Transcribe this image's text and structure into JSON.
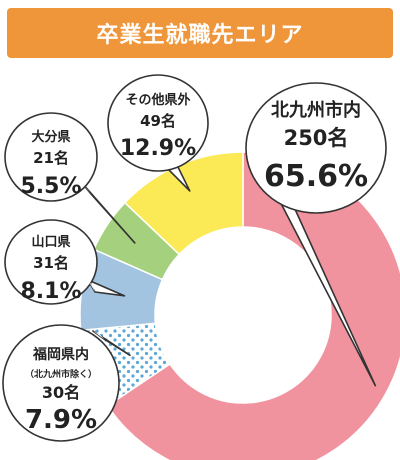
{
  "title": "卒業生就職先エリア",
  "colors": {
    "header": "#F0963A",
    "outline": "#333333"
  },
  "chart_data": {
    "type": "pie",
    "donut": true,
    "title": "卒業生就職先エリア",
    "slices": [
      {
        "name": "北九州市内",
        "count": "250名",
        "percent": 65.6,
        "percent_label": "65.6%",
        "color": "#F0939E",
        "pattern": "solid"
      },
      {
        "name": "福岡県内",
        "note": "（北九州市除く）",
        "count": "30名",
        "percent": 7.9,
        "percent_label": "7.9%",
        "color": "#FFFFFF",
        "pattern": "blue-dots"
      },
      {
        "name": "山口県",
        "count": "31名",
        "percent": 8.1,
        "percent_label": "8.1%",
        "color": "#A2C4E0",
        "pattern": "solid"
      },
      {
        "name": "大分県",
        "count": "21名",
        "percent": 5.5,
        "percent_label": "5.5%",
        "color": "#A5D17E",
        "pattern": "solid"
      },
      {
        "name": "その他県外",
        "count": "49名",
        "percent": 12.9,
        "percent_label": "12.9%",
        "color": "#FBEA55",
        "pattern": "solid"
      }
    ]
  }
}
